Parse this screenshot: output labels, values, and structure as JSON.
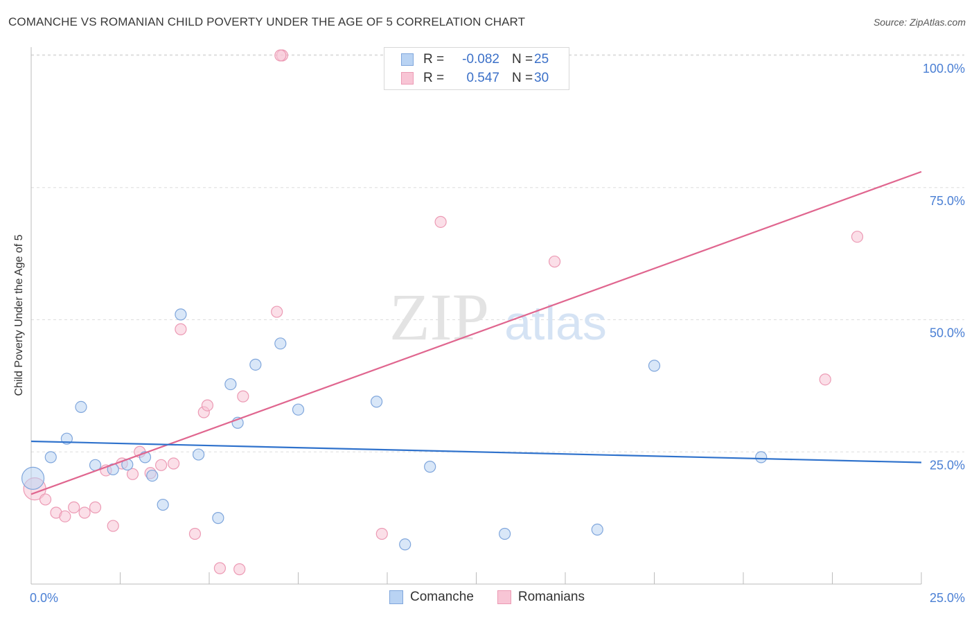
{
  "header": {
    "title": "COMANCHE VS ROMANIAN CHILD POVERTY UNDER THE AGE OF 5 CORRELATION CHART",
    "source": "Source: ZipAtlas.com"
  },
  "legend": {
    "rows": [
      {
        "r_label": "R =",
        "r_value": "-0.082",
        "n_label": "N =",
        "n_value": "25"
      },
      {
        "r_label": "R =",
        "r_value": "0.547",
        "n_label": "N =",
        "n_value": "30"
      }
    ],
    "series_names": [
      "Comanche",
      "Romanians"
    ]
  },
  "watermark": {
    "zip": "ZIP",
    "atlas": "atlas"
  },
  "colors": {
    "comanche_fill": "#b9d3f3",
    "comanche_stroke": "#7fa6dc",
    "comanche_line": "#2f72cc",
    "romanian_fill": "#f8c5d5",
    "romanian_stroke": "#ec9ab4",
    "romanian_line": "#e0668f",
    "tick_text": "#4a7fd4",
    "grid": "#dddddd"
  },
  "chart_data": {
    "type": "scatter",
    "title": "COMANCHE VS ROMANIAN CHILD POVERTY UNDER THE AGE OF 5 CORRELATION CHART",
    "xlabel": "",
    "ylabel": "Child Poverty Under the Age of 5",
    "xlim": [
      0,
      25
    ],
    "ylim": [
      0,
      102
    ],
    "x_tick_labels": [
      "0.0%",
      "25.0%"
    ],
    "y_ticks": [
      25,
      50,
      75,
      100
    ],
    "y_tick_labels": [
      "25.0%",
      "50.0%",
      "75.0%",
      "100.0%"
    ],
    "grid": true,
    "legend_position": "bottom-center",
    "series": [
      {
        "name": "Comanche",
        "R": -0.082,
        "N": 25,
        "trend": {
          "x": [
            0,
            25
          ],
          "y": [
            27.0,
            23.0
          ]
        },
        "points": [
          {
            "x": 0.05,
            "y": 20.0,
            "big": true
          },
          {
            "x": 0.55,
            "y": 24.0
          },
          {
            "x": 1.0,
            "y": 27.5
          },
          {
            "x": 1.4,
            "y": 33.5
          },
          {
            "x": 1.8,
            "y": 22.5
          },
          {
            "x": 2.3,
            "y": 21.7
          },
          {
            "x": 2.7,
            "y": 22.6
          },
          {
            "x": 3.2,
            "y": 24.0
          },
          {
            "x": 3.4,
            "y": 20.5
          },
          {
            "x": 3.7,
            "y": 15.0
          },
          {
            "x": 4.2,
            "y": 51.0
          },
          {
            "x": 4.7,
            "y": 24.5
          },
          {
            "x": 5.25,
            "y": 12.5
          },
          {
            "x": 5.6,
            "y": 37.8
          },
          {
            "x": 5.8,
            "y": 30.5
          },
          {
            "x": 6.3,
            "y": 41.5
          },
          {
            "x": 7.0,
            "y": 45.5
          },
          {
            "x": 7.5,
            "y": 33.0
          },
          {
            "x": 9.7,
            "y": 34.5
          },
          {
            "x": 10.5,
            "y": 7.5
          },
          {
            "x": 11.2,
            "y": 22.2
          },
          {
            "x": 13.3,
            "y": 9.5
          },
          {
            "x": 15.9,
            "y": 10.3
          },
          {
            "x": 17.5,
            "y": 41.3
          },
          {
            "x": 20.5,
            "y": 24.0
          }
        ]
      },
      {
        "name": "Romanians",
        "R": 0.547,
        "N": 30,
        "trend": {
          "x": [
            0,
            25
          ],
          "y": [
            17.0,
            78.0
          ]
        },
        "points": [
          {
            "x": 0.1,
            "y": 18.0,
            "big": true
          },
          {
            "x": 0.4,
            "y": 16.0
          },
          {
            "x": 0.7,
            "y": 13.5
          },
          {
            "x": 0.95,
            "y": 12.8
          },
          {
            "x": 1.2,
            "y": 14.5
          },
          {
            "x": 1.5,
            "y": 13.5
          },
          {
            "x": 1.8,
            "y": 14.5
          },
          {
            "x": 2.1,
            "y": 21.5
          },
          {
            "x": 2.3,
            "y": 11.0
          },
          {
            "x": 2.55,
            "y": 22.8
          },
          {
            "x": 2.85,
            "y": 20.8
          },
          {
            "x": 3.05,
            "y": 25.0
          },
          {
            "x": 3.35,
            "y": 21.0
          },
          {
            "x": 3.65,
            "y": 22.5
          },
          {
            "x": 4.0,
            "y": 22.8
          },
          {
            "x": 4.2,
            "y": 48.2
          },
          {
            "x": 4.6,
            "y": 9.5
          },
          {
            "x": 4.85,
            "y": 32.5
          },
          {
            "x": 4.95,
            "y": 33.8
          },
          {
            "x": 5.3,
            "y": 3.0
          },
          {
            "x": 5.85,
            "y": 2.8
          },
          {
            "x": 5.95,
            "y": 35.5
          },
          {
            "x": 6.9,
            "y": 51.5
          },
          {
            "x": 7.05,
            "y": 100.0
          },
          {
            "x": 9.85,
            "y": 9.5
          },
          {
            "x": 11.5,
            "y": 68.5
          },
          {
            "x": 14.7,
            "y": 61.0
          },
          {
            "x": 22.3,
            "y": 38.7
          },
          {
            "x": 23.2,
            "y": 65.7
          },
          {
            "x": 7.0,
            "y": 100.0
          }
        ]
      }
    ]
  }
}
